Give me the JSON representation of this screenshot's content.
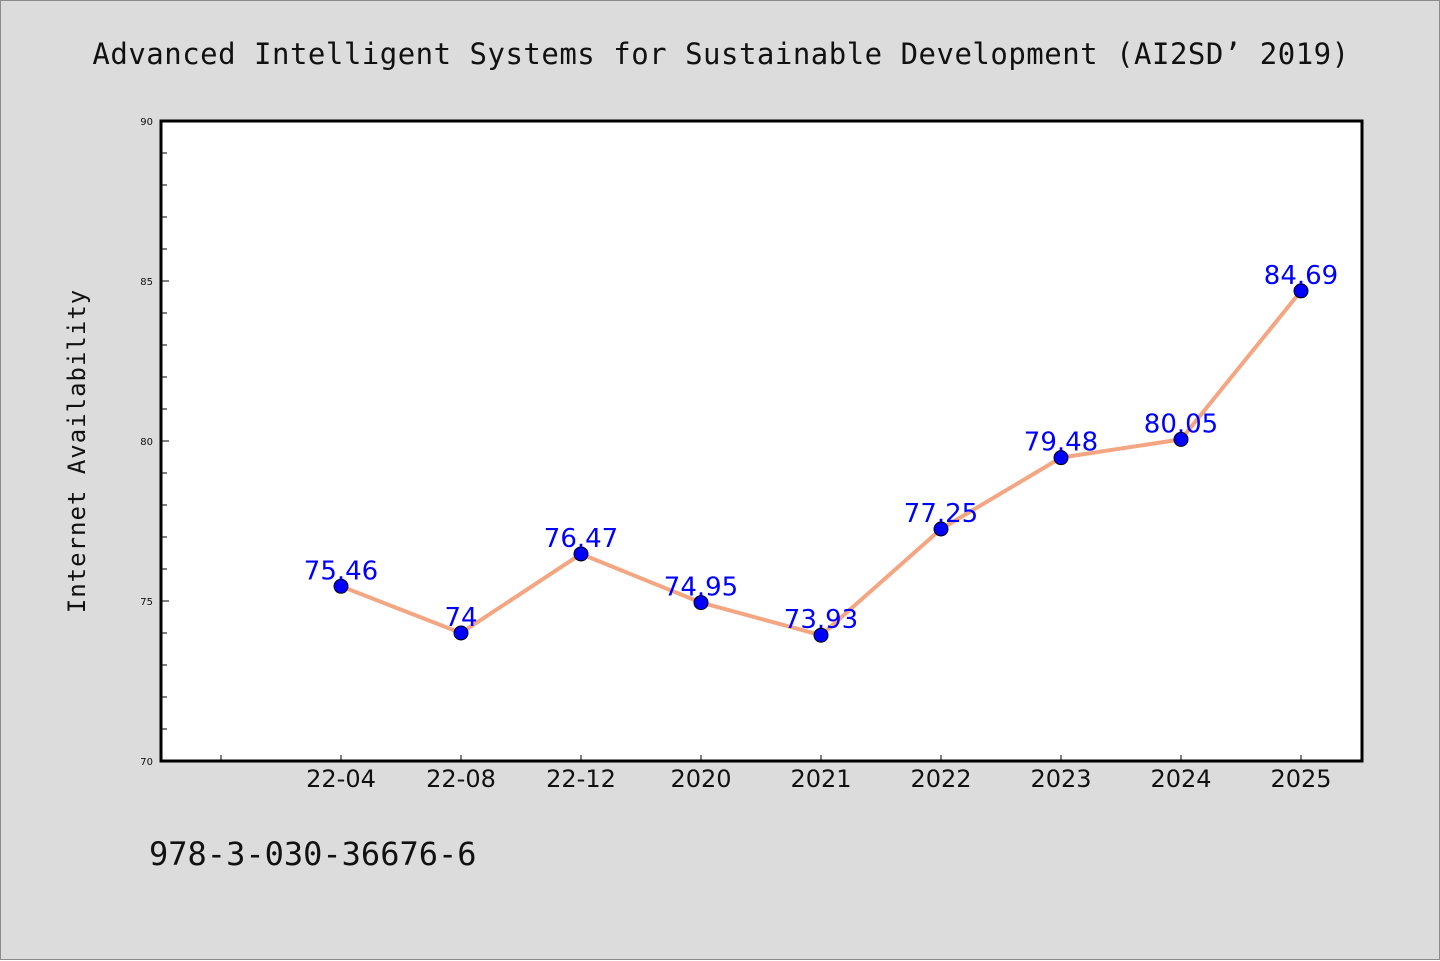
{
  "colors": {
    "background": "#dcdcdc",
    "plot_area": "#ffffff",
    "line": "#f4a582",
    "markers": "#0000ff",
    "data_labels": "#0000ff"
  },
  "footer_text": "978-3-030-36676-6",
  "chart_data": {
    "type": "line",
    "title": "Advanced Intelligent Systems for Sustainable Development (AI2SD’ 2019)",
    "xlabel": "",
    "ylabel": "Internet Availability",
    "categories": [
      "22-04",
      "22-08",
      "22-12",
      "2020",
      "2021",
      "2022",
      "2023",
      "2024",
      "2025"
    ],
    "series": [
      {
        "values": [
          75.46,
          74,
          76.47,
          74.95,
          73.93,
          77.25,
          79.48,
          80.05,
          84.69
        ]
      }
    ],
    "data_labels": [
      "75.46",
      "74",
      "76.47",
      "74.95",
      "73.93",
      "77.25",
      "79.48",
      "80.05",
      "84.69"
    ],
    "ylim": [
      70,
      90
    ],
    "yticks": [
      "70",
      "75",
      "80",
      "85",
      "90"
    ],
    "grid": false,
    "legend": "none"
  }
}
